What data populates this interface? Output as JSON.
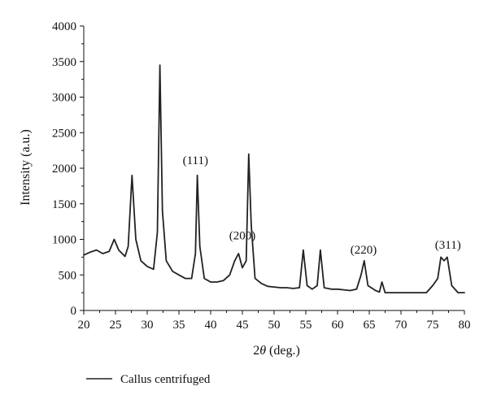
{
  "chart_data": {
    "type": "line",
    "title": "",
    "xlabel_prefix": "2",
    "xlabel_symbol": "θ",
    "xlabel_suffix": " (deg.)",
    "ylabel": "Intensity (a.u.)",
    "xlim": [
      20,
      80
    ],
    "ylim": [
      0,
      4000
    ],
    "x_ticks": [
      20,
      25,
      30,
      35,
      40,
      45,
      50,
      55,
      60,
      65,
      70,
      75,
      80
    ],
    "y_ticks": [
      0,
      500,
      1000,
      1500,
      2000,
      2500,
      3000,
      3500,
      4000
    ],
    "grid": false,
    "legend_position": "bottom-left",
    "series": [
      {
        "name": "Callus centrifuged",
        "color": "#222222",
        "x": [
          20,
          21,
          22,
          23,
          24,
          24.8,
          25.5,
          26.5,
          27,
          27.6,
          28.2,
          29,
          30,
          31,
          31.6,
          32,
          32.4,
          33,
          34,
          35,
          36,
          37,
          37.6,
          37.9,
          38.3,
          39,
          40,
          41,
          42,
          43,
          43.8,
          44.4,
          45,
          45.6,
          46,
          46.4,
          47,
          48,
          49,
          50,
          51,
          52,
          53,
          54,
          54.6,
          55.2,
          56,
          56.8,
          57.3,
          57.9,
          59,
          60,
          61,
          62,
          63,
          63.7,
          64.2,
          64.8,
          66,
          66.6,
          67,
          67.5,
          68.5,
          70,
          72,
          74,
          75,
          75.8,
          76.3,
          76.8,
          77.3,
          78,
          79,
          80
        ],
        "y": [
          780,
          820,
          850,
          800,
          830,
          1000,
          850,
          760,
          900,
          1900,
          1000,
          700,
          620,
          580,
          1100,
          3450,
          1400,
          700,
          550,
          500,
          450,
          450,
          800,
          1900,
          900,
          450,
          400,
          400,
          420,
          500,
          700,
          800,
          600,
          700,
          2200,
          1200,
          450,
          380,
          340,
          330,
          320,
          320,
          310,
          320,
          850,
          350,
          300,
          350,
          850,
          320,
          300,
          300,
          290,
          280,
          300,
          500,
          700,
          350,
          280,
          260,
          400,
          250,
          250,
          250,
          250,
          250,
          350,
          450,
          750,
          700,
          750,
          350,
          250,
          250
        ]
      }
    ],
    "annotations": [
      {
        "text": "(111)",
        "x": 37.6,
        "y": 2060
      },
      {
        "text": "(200)",
        "x": 45.0,
        "y": 1000
      },
      {
        "text": "(220)",
        "x": 64.1,
        "y": 800
      },
      {
        "text": "(311)",
        "x": 77.4,
        "y": 870
      }
    ]
  }
}
